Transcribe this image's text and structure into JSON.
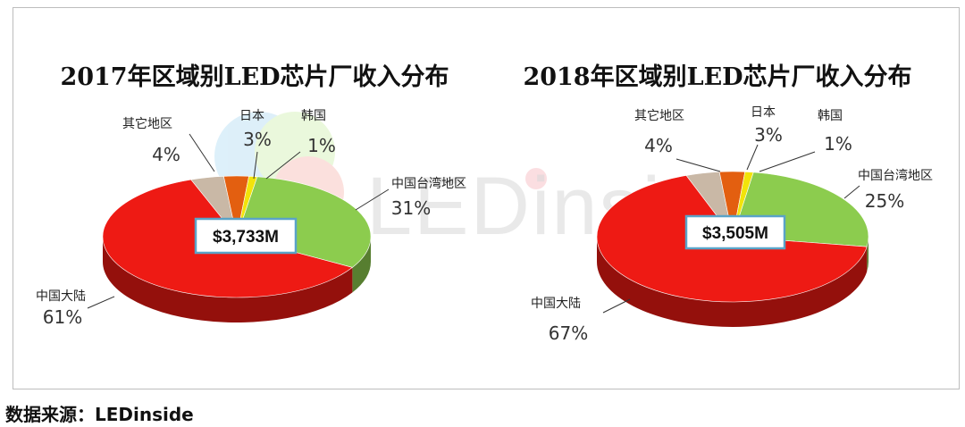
{
  "watermark": "LEDinside",
  "source": "数据来源：LEDinside",
  "chart_data": [
    {
      "type": "pie",
      "title": "2017年区域别LED芯片厂收入分布",
      "center_label": "$3,733M",
      "slices": [
        {
          "label": "其它地区",
          "value": 4,
          "value_label": "4%",
          "color": "#c9b8a6"
        },
        {
          "label": "日本",
          "value": 3,
          "value_label": "3%",
          "color": "#e35f10"
        },
        {
          "label": "韩国",
          "value": 1,
          "value_label": "1%",
          "color": "#f2e40a"
        },
        {
          "label": "中国台湾地区",
          "value": 31,
          "value_label": "31%",
          "color": "#8ccc4e"
        },
        {
          "label": "中国大陆",
          "value": 61,
          "value_label": "61%",
          "color": "#ee1a14"
        }
      ]
    },
    {
      "type": "pie",
      "title": "2018年区域别LED芯片厂收入分布",
      "center_label": "$3,505M",
      "slices": [
        {
          "label": "其它地区",
          "value": 4,
          "value_label": "4%",
          "color": "#c9b8a6"
        },
        {
          "label": "日本",
          "value": 3,
          "value_label": "3%",
          "color": "#e35f10"
        },
        {
          "label": "韩国",
          "value": 1,
          "value_label": "1%",
          "color": "#f2e40a"
        },
        {
          "label": "中国台湾地区",
          "value": 25,
          "value_label": "25%",
          "color": "#8ccc4e"
        },
        {
          "label": "中国大陆",
          "value": 67,
          "value_label": "67%",
          "color": "#ee1a14"
        }
      ]
    }
  ]
}
